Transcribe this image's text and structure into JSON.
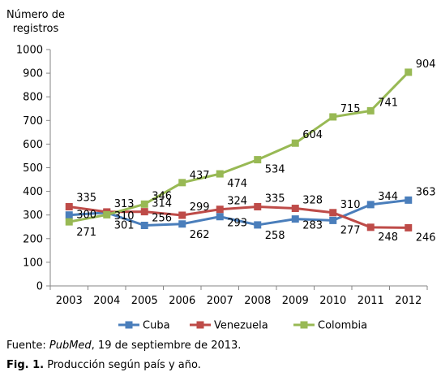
{
  "chart_data": {
    "type": "line",
    "ylabel_line1": "Número de",
    "ylabel_line2": "registros",
    "xlabel": "",
    "ylim": [
      0,
      1000
    ],
    "yticks": [
      0,
      100,
      200,
      300,
      400,
      500,
      600,
      700,
      800,
      900,
      1000
    ],
    "categories": [
      "2003",
      "2004",
      "2005",
      "2006",
      "2007",
      "2008",
      "2009",
      "2010",
      "2011",
      "2012"
    ],
    "grid": false,
    "legend_position": "bottom",
    "series": [
      {
        "name": "Cuba",
        "color": "#4a7ebb",
        "values": [
          300,
          310,
          256,
          262,
          293,
          258,
          283,
          277,
          344,
          363
        ]
      },
      {
        "name": "Venezuela",
        "color": "#be4b48",
        "values": [
          335,
          313,
          314,
          299,
          324,
          335,
          328,
          310,
          248,
          246
        ]
      },
      {
        "name": "Colombia",
        "color": "#98b954",
        "values": [
          271,
          301,
          346,
          437,
          474,
          534,
          604,
          715,
          741,
          904
        ]
      }
    ]
  },
  "caption": {
    "source_prefix": "Fuente: ",
    "source_italic": "PubMed",
    "source_suffix": ", 19 de septiembre de 2013.",
    "fig_label": "Fig. 1.",
    "fig_text": " Producción según país y año."
  }
}
